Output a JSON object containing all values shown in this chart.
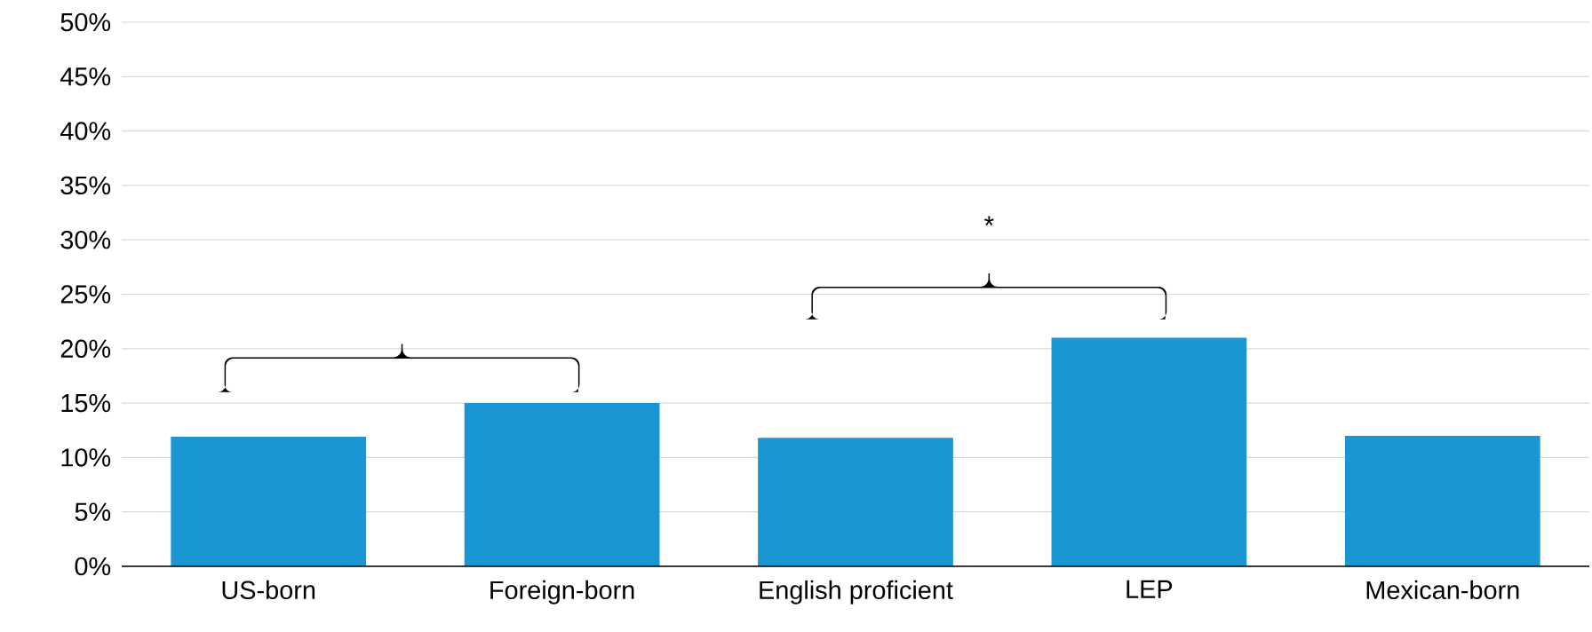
{
  "chart_data": {
    "type": "bar",
    "categories": [
      "US-born",
      "Foreign-born",
      "English proficient",
      "LEP",
      "Mexican-born"
    ],
    "values": [
      11.9,
      15.0,
      11.8,
      21.0,
      12.0
    ],
    "color": "#1a96d4",
    "ylim": [
      0,
      50
    ],
    "yticks": [
      {
        "value": 0,
        "label": "0%"
      },
      {
        "value": 5,
        "label": "5%"
      },
      {
        "value": 10,
        "label": "10%"
      },
      {
        "value": 15,
        "label": "15%"
      },
      {
        "value": 20,
        "label": "20%"
      },
      {
        "value": 25,
        "label": "25%"
      },
      {
        "value": 30,
        "label": "30%"
      },
      {
        "value": 35,
        "label": "35%"
      },
      {
        "value": 40,
        "label": "40%"
      },
      {
        "value": 45,
        "label": "45%"
      },
      {
        "value": 50,
        "label": "50%"
      }
    ],
    "grid": "y",
    "annotations": [
      "*"
    ]
  }
}
